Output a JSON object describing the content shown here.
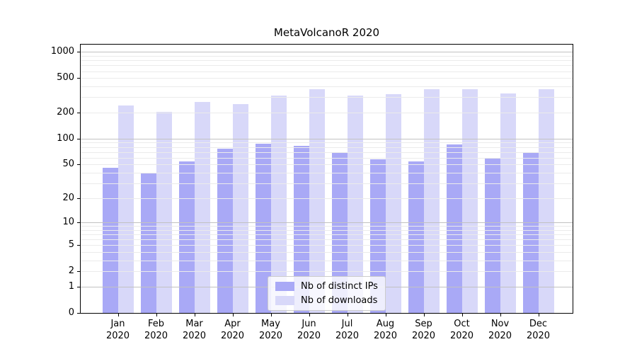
{
  "chart_data": {
    "type": "bar",
    "title": "MetaVolcanoR 2020",
    "categories": [
      "Jan",
      "Feb",
      "Mar",
      "Apr",
      "May",
      "Jun",
      "Jul",
      "Aug",
      "Sep",
      "Oct",
      "Nov",
      "Dec"
    ],
    "x_year_label": "2020",
    "series": [
      {
        "name": "Nb of distinct IPs",
        "color": "#a9a9f6",
        "values": [
          46,
          39,
          54,
          77,
          87,
          82,
          68,
          57,
          54,
          85,
          59,
          69
        ]
      },
      {
        "name": "Nb of downloads",
        "color": "#d8d8f9",
        "values": [
          243,
          202,
          264,
          253,
          316,
          374,
          316,
          328,
          369,
          374,
          330,
          369
        ]
      }
    ],
    "y_axis": {
      "scale": "log1p",
      "tick_values": [
        0,
        1,
        2,
        5,
        10,
        20,
        50,
        100,
        200,
        500,
        1000
      ],
      "major_gridlines": [
        1,
        10,
        100,
        1000
      ],
      "minor_gridlines": [
        2,
        3,
        4,
        5,
        6,
        7,
        8,
        9,
        20,
        30,
        40,
        50,
        60,
        70,
        80,
        90,
        200,
        300,
        400,
        500,
        600,
        700,
        800,
        900
      ],
      "top_log_units": 3.084
    },
    "legend_position": "lower center",
    "grid": true
  },
  "colors": {
    "background": "#ffffff",
    "axis": "#000000",
    "grid_minor": "#ebebeb",
    "grid_major": "#c2c2c2",
    "legend_border": "#cccccc"
  }
}
